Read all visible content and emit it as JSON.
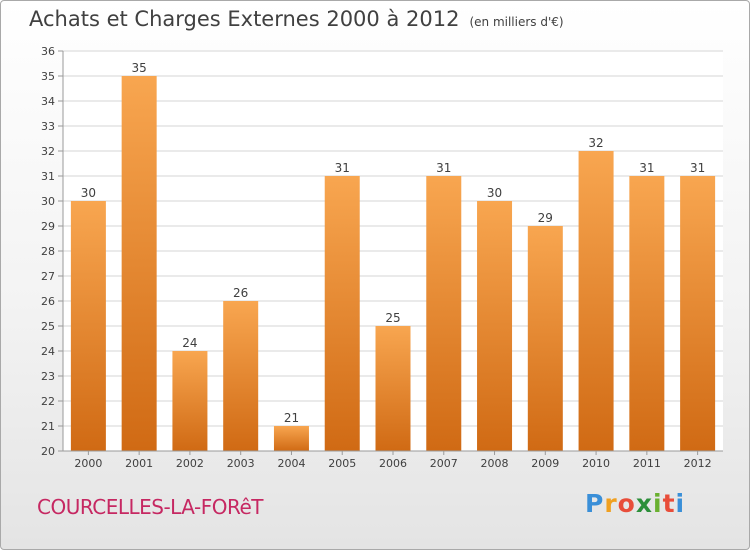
{
  "header": {
    "title": "Achats et Charges Externes 2000 à 2012",
    "unit": "(en milliers d'€)"
  },
  "footer": {
    "commune": "COURCELLES-LA-FORêT",
    "logo": {
      "letters": [
        "P",
        "r",
        "o",
        "x",
        "i",
        "t",
        "i"
      ],
      "colors": [
        "#3a8fd8",
        "#f0a020",
        "#e84d3a",
        "#2c8f3a",
        "#6ab030",
        "#e84d3a",
        "#3a8fd8"
      ]
    }
  },
  "colors": {
    "bar_top": "#f8a650",
    "bar_bottom": "#d06a14",
    "grid": "#d6d6d6",
    "axis_text": "#404040"
  },
  "chart_data": {
    "type": "bar",
    "categories": [
      "2000",
      "2001",
      "2002",
      "2003",
      "2004",
      "2005",
      "2006",
      "2007",
      "2008",
      "2009",
      "2010",
      "2011",
      "2012"
    ],
    "values": [
      30,
      35,
      24,
      26,
      21,
      31,
      25,
      31,
      30,
      29,
      32,
      31,
      31
    ],
    "ylim": [
      20,
      36
    ],
    "yticks": [
      20,
      21,
      22,
      23,
      24,
      25,
      26,
      27,
      28,
      29,
      30,
      31,
      32,
      33,
      34,
      35,
      36
    ],
    "grid": true,
    "data_labels": [
      "30",
      "35",
      "24",
      "26",
      "21",
      "31",
      "25",
      "31",
      "30",
      "29",
      "32",
      "31",
      "31"
    ]
  }
}
